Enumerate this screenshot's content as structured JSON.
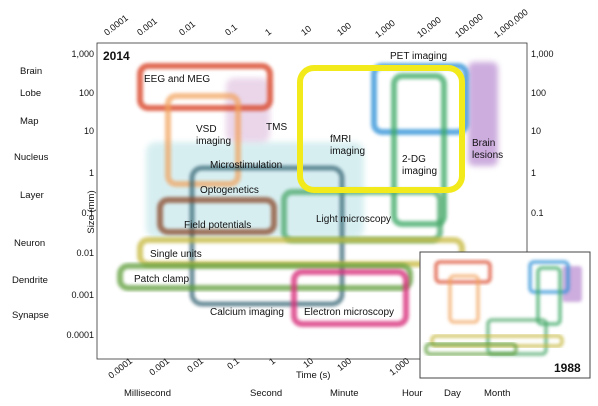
{
  "figure": {
    "year_main": "2014",
    "year_inset": "1988",
    "x_axis_title": "Time (s)",
    "y_axis_title": "Size (mm)"
  },
  "top_ticks": [
    "0.0001",
    "0.001",
    "0.01",
    "0.1",
    "1",
    "10",
    "100",
    "1,000",
    "10,000",
    "100,000",
    "1,000,000"
  ],
  "bottom_ticks": [
    "0.0001",
    "0.001",
    "0.01",
    "0.1",
    "1",
    "10",
    "100",
    "1,000"
  ],
  "y_ticks": [
    "1,000",
    "100",
    "10",
    "1",
    "0.1",
    "0.01",
    "0.001",
    "0.0001"
  ],
  "scale_labels": [
    "Brain",
    "Lobe",
    "Map",
    "Nucleus",
    "Layer",
    "Neuron",
    "Dendrite",
    "Synapse"
  ],
  "time_labels": [
    "Millisecond",
    "Second",
    "Minute",
    "Hour",
    "Day",
    "Month"
  ],
  "methods": [
    {
      "label": "EEG and MEG",
      "color": "#d9472b"
    },
    {
      "label": "PET imaging",
      "color": "#2c8fd6"
    },
    {
      "label": "Brain\nlesions",
      "color": "#a56bc4"
    },
    {
      "label": "VSD\nimaging",
      "color": "#f2a25c"
    },
    {
      "label": "TMS",
      "color": "#c58ac2"
    },
    {
      "label": "fMRI\nimaging",
      "color": "#f2ea1a"
    },
    {
      "label": "2-DG\nimaging",
      "color": "#3aa865"
    },
    {
      "label": "Microstimulation",
      "color": "#8fd0d8"
    },
    {
      "label": "Optogenetics",
      "color": "#6fc2c9"
    },
    {
      "label": "Field potentials",
      "color": "#8a4a2a"
    },
    {
      "label": "Light microscopy",
      "color": "#4ca86a"
    },
    {
      "label": "Single units",
      "color": "#c6b83c"
    },
    {
      "label": "Patch clamp",
      "color": "#5e9e3a"
    },
    {
      "label": "Calcium imaging",
      "color": "#2e5f6e"
    },
    {
      "label": "Electron microscopy",
      "color": "#d8357e"
    }
  ]
}
